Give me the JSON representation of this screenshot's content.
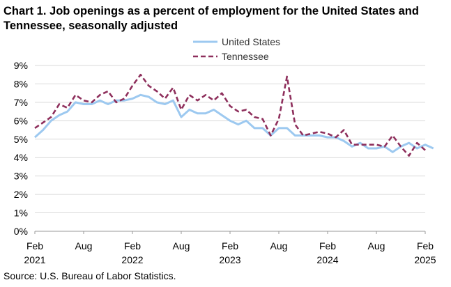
{
  "chart_data": {
    "type": "line",
    "title": "Chart 1. Job openings as a percent of employment for the United States and Tennessee, seasonally adjusted",
    "source": "Source: U.S. Bureau of Labor Statistics.",
    "xlabel": "",
    "ylabel": "",
    "ylim": [
      0,
      9
    ],
    "y_ticks": [
      "0%",
      "1%",
      "2%",
      "3%",
      "4%",
      "5%",
      "6%",
      "7%",
      "8%",
      "9%"
    ],
    "x_ticks": [
      {
        "month": "Feb",
        "year": "2021",
        "index": 0
      },
      {
        "month": "Aug",
        "year": "",
        "index": 6
      },
      {
        "month": "Feb",
        "year": "2022",
        "index": 12
      },
      {
        "month": "Aug",
        "year": "",
        "index": 18
      },
      {
        "month": "Feb",
        "year": "2023",
        "index": 24
      },
      {
        "month": "Aug",
        "year": "",
        "index": 30
      },
      {
        "month": "Feb",
        "year": "2024",
        "index": 36
      },
      {
        "month": "Aug",
        "year": "",
        "index": 42
      },
      {
        "month": "Feb",
        "year": "2025",
        "index": 48
      }
    ],
    "grid": true,
    "legend": "top-right",
    "series": [
      {
        "name": "United States",
        "color": "#9dc9f0",
        "style": "solid",
        "values": [
          5.1,
          5.5,
          6.0,
          6.3,
          6.5,
          7.0,
          6.9,
          6.9,
          7.1,
          6.9,
          7.1,
          7.1,
          7.2,
          7.4,
          7.3,
          7.0,
          6.9,
          7.1,
          6.2,
          6.6,
          6.4,
          6.4,
          6.6,
          6.3,
          6.0,
          5.8,
          6.0,
          5.6,
          5.6,
          5.2,
          5.6,
          5.6,
          5.2,
          5.2,
          5.2,
          5.2,
          5.1,
          5.1,
          4.9,
          4.6,
          4.8,
          4.5,
          4.5,
          4.6,
          4.3,
          4.6,
          4.8,
          4.5,
          4.7,
          4.5
        ]
      },
      {
        "name": "Tennessee",
        "color": "#8e2f5c",
        "style": "dashed",
        "values": [
          5.6,
          5.9,
          6.2,
          6.9,
          6.7,
          7.4,
          7.1,
          7.0,
          7.4,
          7.6,
          7.0,
          7.2,
          7.9,
          8.5,
          7.9,
          7.6,
          7.2,
          7.8,
          6.6,
          7.4,
          7.1,
          7.4,
          7.1,
          7.5,
          6.8,
          6.5,
          6.6,
          6.2,
          6.1,
          5.2,
          6.1,
          8.4,
          5.8,
          5.2,
          5.3,
          5.4,
          5.3,
          5.1,
          5.5,
          4.7,
          4.7,
          4.7,
          4.7,
          4.6,
          5.2,
          4.6,
          4.1,
          4.8,
          4.4
        ]
      }
    ]
  }
}
